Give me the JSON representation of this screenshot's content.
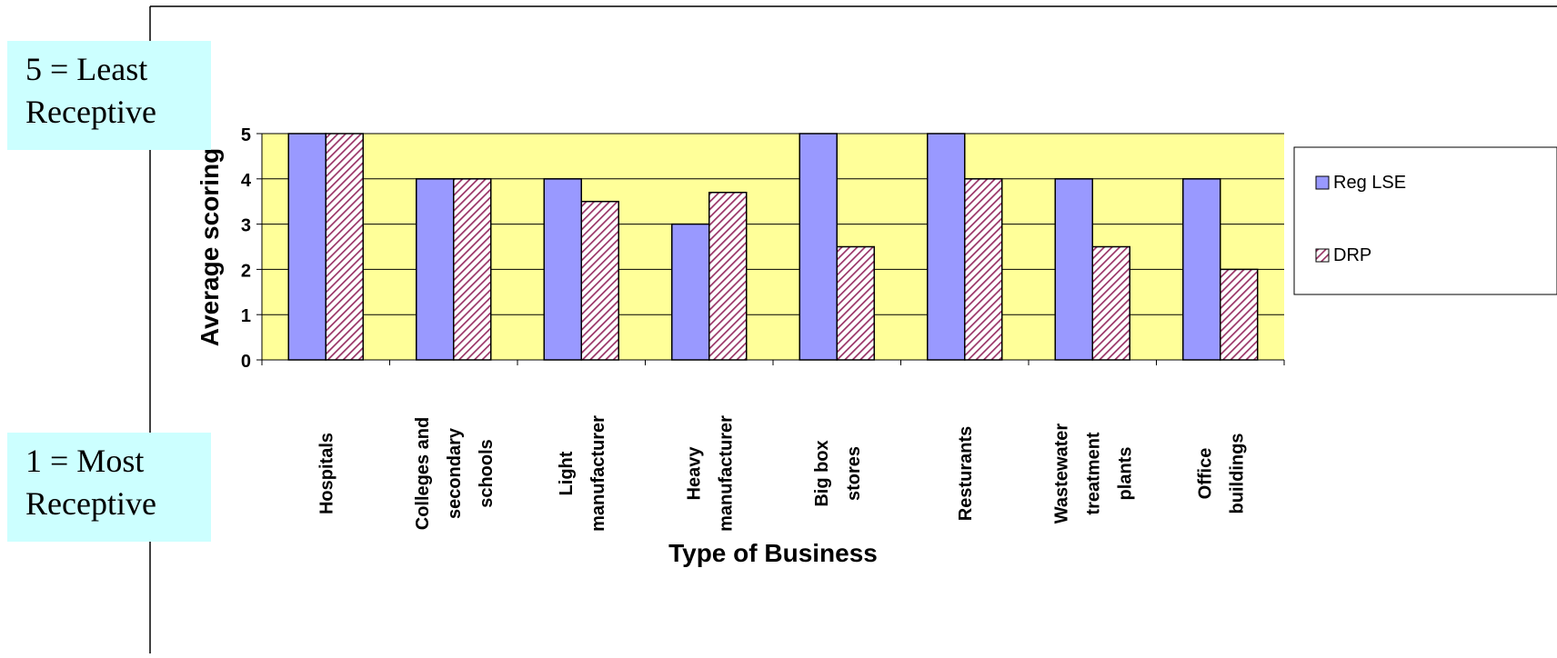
{
  "callouts": {
    "top": {
      "line1": "5 = Least",
      "line2": "Receptive"
    },
    "bottom": {
      "line1": "1 = Most",
      "line2": "Receptive"
    }
  },
  "colors": {
    "plot_background": "#ffff99",
    "reg_lse": "#9999ff",
    "drp": "#993366",
    "callout": "#ccffff"
  },
  "chart_data": {
    "type": "bar",
    "title": "",
    "xlabel": "Type of Business",
    "ylabel": "Average scoring",
    "ylim": [
      0,
      5
    ],
    "yticks": [
      0,
      1,
      2,
      3,
      4,
      5
    ],
    "grid": true,
    "legend_position": "right",
    "categories": [
      [
        "Hospitals"
      ],
      [
        "Colleges and",
        "secondary",
        "schools"
      ],
      [
        "Light",
        "manufacturer"
      ],
      [
        "Heavy",
        "manufacturer"
      ],
      [
        "Big box",
        "stores"
      ],
      [
        "Resturants"
      ],
      [
        "Wastewater",
        "treatment",
        "plants"
      ],
      [
        "Office",
        "buildings"
      ]
    ],
    "series": [
      {
        "name": "Reg LSE",
        "pattern": "solid",
        "values": [
          5,
          4,
          4,
          3,
          5,
          5,
          4,
          4
        ]
      },
      {
        "name": "DRP",
        "pattern": "hatched",
        "values": [
          5,
          4,
          3.5,
          3.7,
          2.5,
          4,
          2.5,
          2
        ]
      }
    ]
  }
}
